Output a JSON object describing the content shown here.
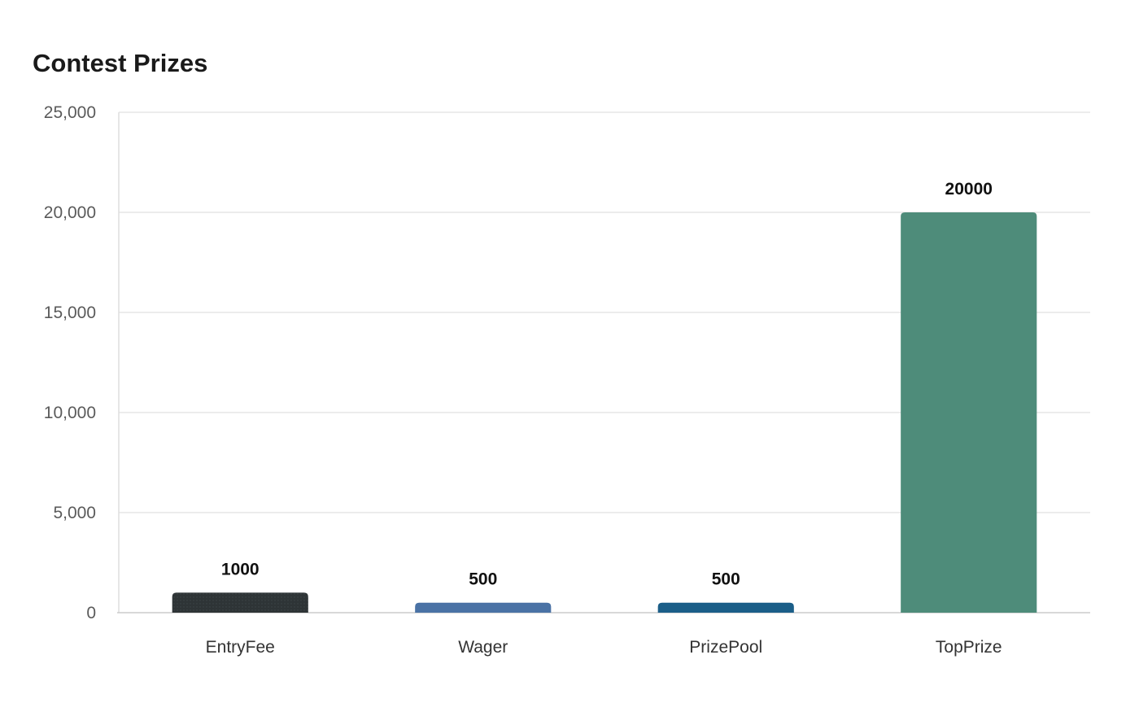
{
  "chart_data": {
    "type": "bar",
    "title": "Contest Prizes",
    "xlabel": "",
    "ylabel": "",
    "categories": [
      "EntryFee",
      "Wager",
      "PrizePool",
      "TopPrize"
    ],
    "values": [
      1000,
      500,
      500,
      20000
    ],
    "ylim": [
      0,
      25000
    ],
    "yticks": [
      0,
      5000,
      10000,
      15000,
      20000,
      25000
    ],
    "ytick_labels": [
      "0",
      "5,000",
      "10,000",
      "15,000",
      "20,000",
      "25,000"
    ],
    "data_labels": [
      "1000",
      "500",
      "500",
      "20000"
    ],
    "colors": [
      "#2e3436",
      "#4a72a5",
      "#1b5e88",
      "#4e8c7a"
    ],
    "grid": true,
    "legend": "none"
  }
}
